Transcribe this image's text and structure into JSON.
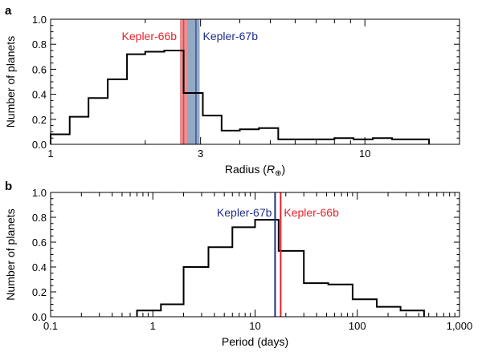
{
  "colors": {
    "kepler66": "#e8202a",
    "kepler67": "#1f2f8a",
    "kepler66_band": "#e87a7e",
    "kepler67_band": "#7f9ab8",
    "histogram": "#000000"
  },
  "chart_data": [
    {
      "panel": "a",
      "type": "histogram",
      "xscale": "log",
      "xlabel": "Radius (R⊕)",
      "xlabel_main": "Radius (",
      "xlabel_symbol": "R",
      "xlabel_sub": "⊕",
      "xlabel_close": ")",
      "ylabel": "Number of planets",
      "xlim": [
        1,
        20
      ],
      "ylim": [
        0,
        1.0
      ],
      "xticks": [
        1,
        3,
        10
      ],
      "xtick_labels": [
        "1",
        "3",
        "10"
      ],
      "yticks": [
        0,
        0.2,
        0.4,
        0.6,
        0.8,
        1.0
      ],
      "ytick_labels": [
        "0.0",
        "0.2",
        "0.4",
        "0.6",
        "0.8",
        "1.0"
      ],
      "bin_edges": [
        1.0,
        1.15,
        1.32,
        1.52,
        1.75,
        2.0,
        2.3,
        2.65,
        3.05,
        3.5,
        4.0,
        4.6,
        5.3,
        6.1,
        7.0,
        8.0,
        9.2,
        10.6,
        12.2,
        14.0,
        16.0
      ],
      "values": [
        0.08,
        0.22,
        0.37,
        0.52,
        0.72,
        0.74,
        0.75,
        0.41,
        0.23,
        0.11,
        0.12,
        0.13,
        0.04,
        0.04,
        0.04,
        0.05,
        0.04,
        0.05,
        0.04,
        0.04
      ],
      "bands": [
        {
          "name": "Kepler-66b",
          "label": "Kepler-66b",
          "x0": 2.58,
          "x1": 2.72,
          "line": 2.65,
          "color_key": "kepler66"
        },
        {
          "name": "Kepler-67b",
          "label": "Kepler-67b",
          "x0": 2.72,
          "x1": 2.98,
          "line": 2.9,
          "color_key": "kepler67"
        }
      ]
    },
    {
      "panel": "b",
      "type": "histogram",
      "xscale": "log",
      "xlabel": "Period (days)",
      "ylabel": "Number of planets",
      "xlim": [
        0.1,
        1000
      ],
      "ylim": [
        0,
        1.0
      ],
      "xticks": [
        0.1,
        1,
        10,
        100,
        1000
      ],
      "xtick_labels": [
        "0.1",
        "1",
        "10",
        "100",
        "1,000"
      ],
      "yticks": [
        0,
        0.2,
        0.4,
        0.6,
        0.8,
        1.0
      ],
      "ytick_labels": [
        "0.0",
        "0.2",
        "0.4",
        "0.6",
        "0.8",
        "1.0"
      ],
      "bin_edges": [
        0.7,
        1.2,
        2.0,
        3.5,
        6.0,
        10.0,
        17.0,
        30.0,
        52.0,
        90.0,
        155.0,
        265.0,
        450.0
      ],
      "values": [
        0.05,
        0.1,
        0.4,
        0.56,
        0.72,
        0.78,
        0.53,
        0.27,
        0.26,
        0.14,
        0.08,
        0.05
      ],
      "lines": [
        {
          "name": "Kepler-67b",
          "label": "Kepler-67b",
          "x": 15.7,
          "color_key": "kepler67"
        },
        {
          "name": "Kepler-66b",
          "label": "Kepler-66b",
          "x": 17.8,
          "color_key": "kepler66"
        }
      ]
    }
  ]
}
